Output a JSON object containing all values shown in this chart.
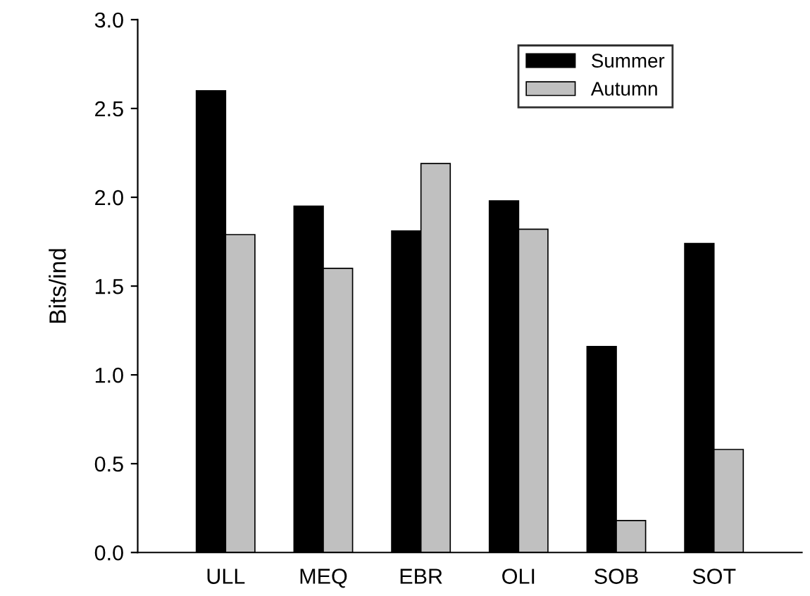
{
  "chart_data": {
    "type": "bar",
    "ylabel": "Bits/ind",
    "categories": [
      "ULL",
      "MEQ",
      "EBR",
      "OLI",
      "SOB",
      "SOT"
    ],
    "series": [
      {
        "name": "Summer",
        "color": "#000000",
        "values": [
          2.6,
          1.95,
          1.81,
          1.98,
          1.16,
          1.74
        ]
      },
      {
        "name": "Autumn",
        "color": "#c0c0c0",
        "values": [
          1.79,
          1.6,
          2.19,
          1.82,
          0.18,
          0.58
        ]
      }
    ],
    "ylim": [
      0,
      3.0
    ],
    "yticks": [
      {
        "value": 0,
        "label": "0.0"
      },
      {
        "value": 0.5,
        "label": "0.5"
      },
      {
        "value": 1,
        "label": "1.0"
      },
      {
        "value": 1.5,
        "label": "1.5"
      },
      {
        "value": 2,
        "label": "2.0"
      },
      {
        "value": 2.5,
        "label": "2.5"
      },
      {
        "value": 3,
        "label": "3.0"
      }
    ],
    "grid": false,
    "legend": "top right"
  }
}
